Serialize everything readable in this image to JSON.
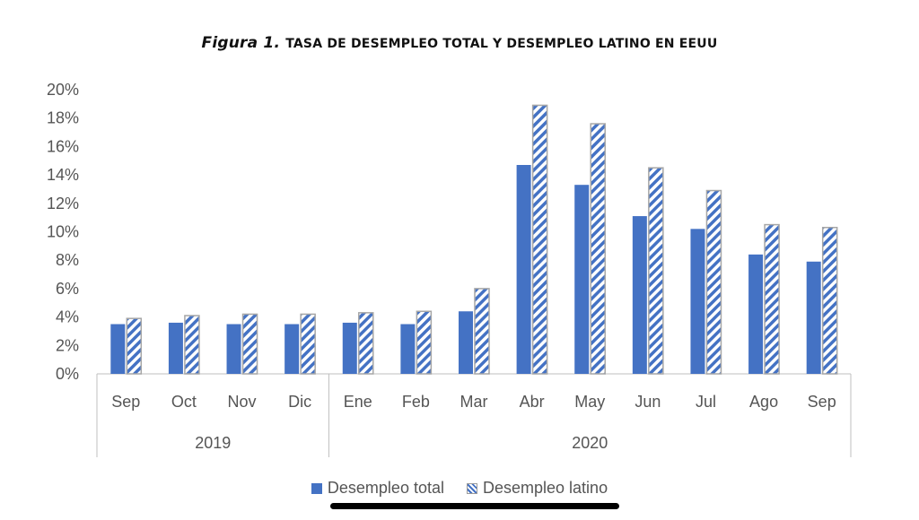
{
  "title": {
    "figura": "Figura 1.",
    "text": "Tasa de desempleo total y desempleo latino en EEUU"
  },
  "chart_data": {
    "type": "bar",
    "categories": [
      "Sep",
      "Oct",
      "Nov",
      "Dic",
      "Ene",
      "Feb",
      "Mar",
      "Abr",
      "May",
      "Jun",
      "Jul",
      "Ago",
      "Sep"
    ],
    "groups": [
      {
        "label": "2019",
        "count": 4
      },
      {
        "label": "2020",
        "count": 9
      }
    ],
    "series": [
      {
        "name": "Desempleo total",
        "values": [
          3.5,
          3.6,
          3.5,
          3.5,
          3.6,
          3.5,
          4.4,
          14.7,
          13.3,
          11.1,
          10.2,
          8.4,
          7.9
        ],
        "color": "#4472c4",
        "pattern": "solid"
      },
      {
        "name": "Desempleo latino",
        "values": [
          3.9,
          4.1,
          4.2,
          4.2,
          4.3,
          4.4,
          6.0,
          18.9,
          17.6,
          14.5,
          12.9,
          10.5,
          10.3
        ],
        "color": "#4472c4",
        "pattern": "hatched"
      }
    ],
    "yticks": [
      "0%",
      "2%",
      "4%",
      "6%",
      "8%",
      "10%",
      "12%",
      "14%",
      "16%",
      "18%",
      "20%"
    ],
    "ylim": [
      0,
      20
    ],
    "grid": false,
    "legend_position": "bottom"
  },
  "system": {
    "home_indicator": "home-indicator"
  }
}
